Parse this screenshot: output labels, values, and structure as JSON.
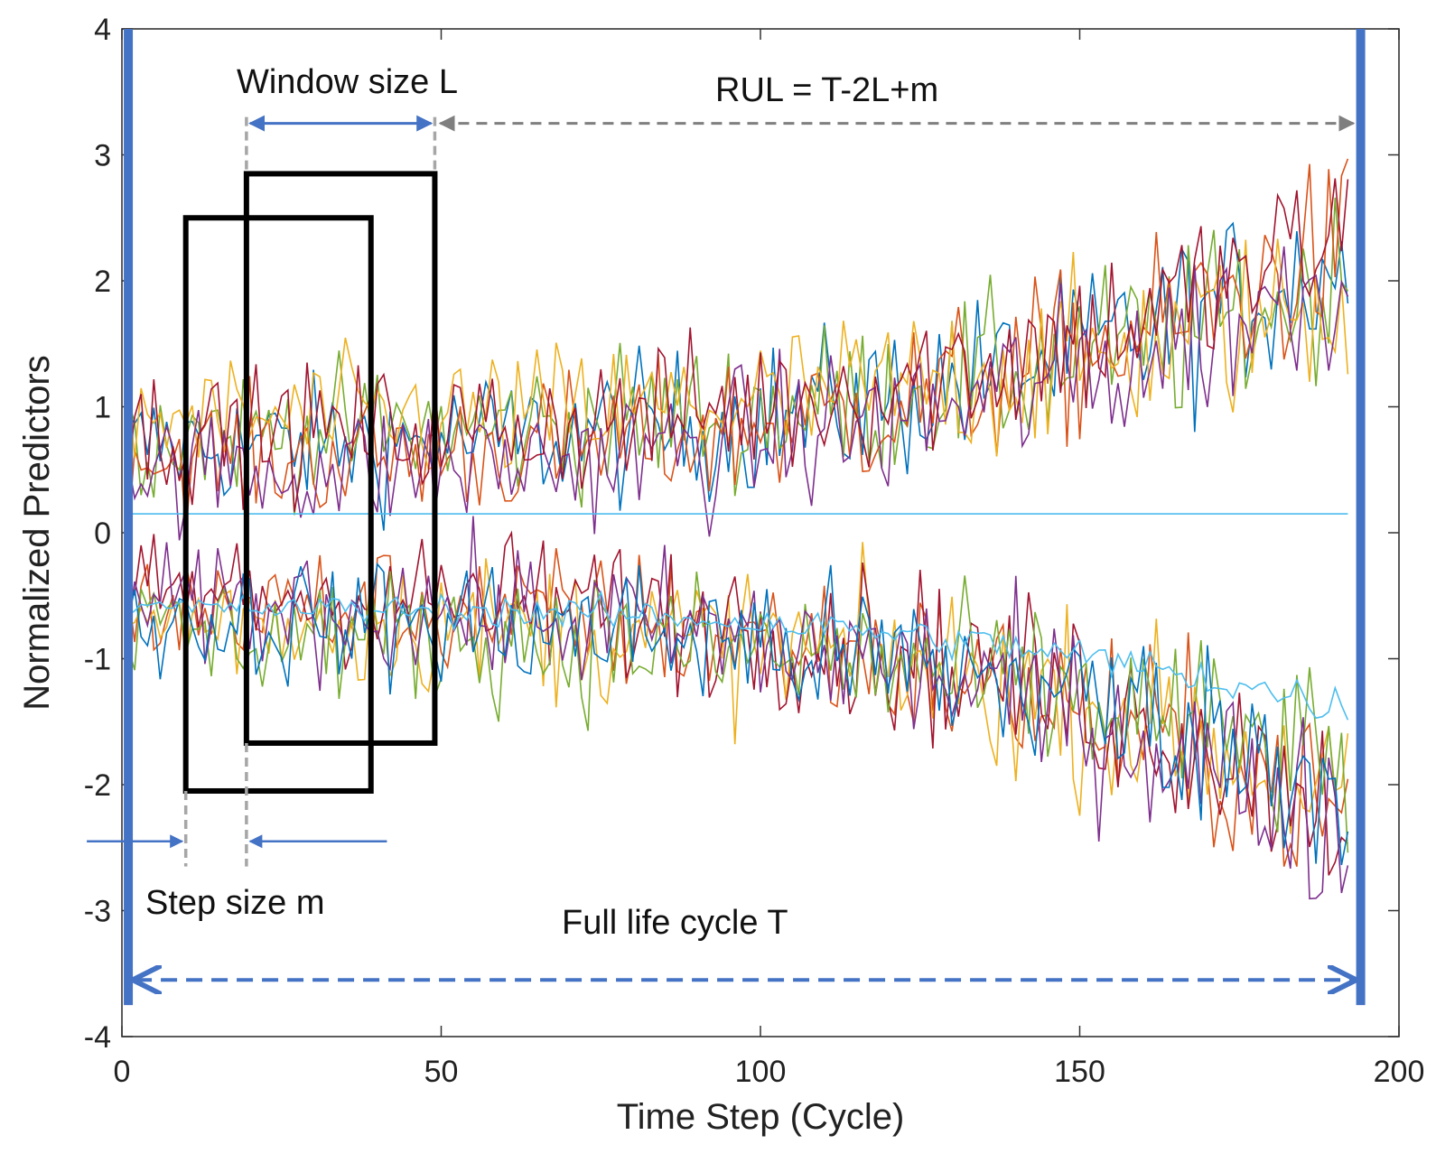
{
  "chart_data": {
    "type": "line",
    "title": "",
    "xlabel": "Time Step (Cycle)",
    "ylabel": "Normalized Predictors",
    "xlim": [
      0,
      200
    ],
    "ylim": [
      -4,
      4
    ],
    "xticks": [
      "0",
      "50",
      "100",
      "150",
      "200"
    ],
    "yticks": [
      "4",
      "3",
      "2",
      "1",
      "0",
      "-1",
      "-2",
      "-3",
      "-4"
    ],
    "grid": false,
    "legend": "none",
    "num_cycles": 192,
    "colors": [
      "#0072bd",
      "#d95319",
      "#edb120",
      "#7e2f8e",
      "#77ac30",
      "#4dbeee",
      "#a2142f"
    ],
    "series_trends": [
      {
        "start": 0.7,
        "end": 2.2,
        "noise": 0.45,
        "color": "#0072bd"
      },
      {
        "start": 0.8,
        "end": 2.0,
        "noise": 0.45,
        "color": "#77ac30"
      },
      {
        "start": 0.6,
        "end": 2.3,
        "noise": 0.45,
        "color": "#d95319"
      },
      {
        "start": 0.9,
        "end": 1.9,
        "noise": 0.45,
        "color": "#edb120"
      },
      {
        "start": 0.5,
        "end": 2.1,
        "noise": 0.45,
        "color": "#7e2f8e"
      },
      {
        "start": 0.8,
        "end": 2.4,
        "noise": 0.45,
        "color": "#a2142f"
      },
      {
        "start": -0.6,
        "end": -2.3,
        "noise": 0.45,
        "color": "#d95319"
      },
      {
        "start": -0.7,
        "end": -2.1,
        "noise": 0.45,
        "color": "#edb120"
      },
      {
        "start": -0.5,
        "end": -2.2,
        "noise": 0.45,
        "color": "#a2142f"
      },
      {
        "start": -0.8,
        "end": -1.9,
        "noise": 0.45,
        "color": "#77ac30"
      },
      {
        "start": -0.6,
        "end": -2.4,
        "noise": 0.45,
        "color": "#7e2f8e"
      },
      {
        "start": -0.7,
        "end": -2.0,
        "noise": 0.45,
        "color": "#0072bd"
      },
      {
        "start": -0.6,
        "end": -1.4,
        "noise": 0.1,
        "color": "#4dbeee"
      },
      {
        "start": 0.15,
        "end": 0.15,
        "noise": 0.0,
        "color": "#4dbeee"
      }
    ],
    "annotations": {
      "window_size": "Window size L",
      "rul": "RUL = T-2L+m",
      "step_size": "Step size m",
      "full_life": "Full life cycle T"
    },
    "windows": [
      {
        "x_start": 10,
        "x_end": 39,
        "y_top": 2.5,
        "y_bottom": -2.05
      },
      {
        "x_start": 19.5,
        "x_end": 49,
        "y_top": 2.85,
        "y_bottom": -1.67
      }
    ],
    "end_of_life_x": 194,
    "start_x": 1
  }
}
